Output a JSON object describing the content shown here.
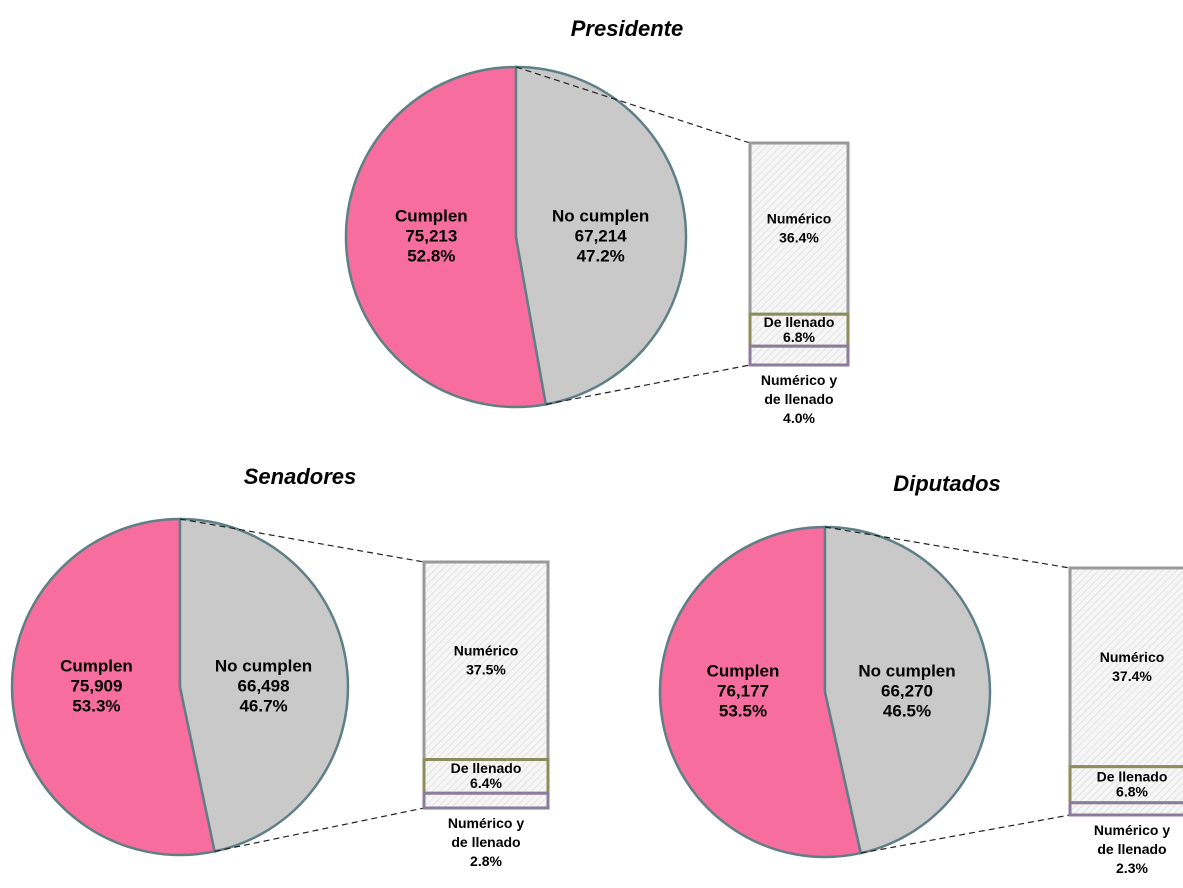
{
  "chart_data": [
    {
      "type": "pie-of-bar",
      "title": "Presidente",
      "categories": [
        "Cumplen",
        "No cumplen"
      ],
      "values": [
        75213,
        67214
      ],
      "value_labels": [
        "75,213",
        "67,214"
      ],
      "percents": [
        52.8,
        47.2
      ],
      "percent_labels": [
        "52.8%",
        "47.2%"
      ],
      "colors": [
        "#f76d9d",
        "#c9c9c9"
      ],
      "bar": {
        "categories": [
          "Numérico",
          "De llenado",
          "Numérico y de llenado"
        ],
        "values": [
          36.4,
          6.8,
          4.0
        ],
        "value_labels": [
          "36.4%",
          "6.8%",
          "4.0%"
        ],
        "color": "#f3f3f3",
        "edge_colors": [
          "#9a9a9a",
          "#8c8c5c",
          "#8c7c9c"
        ]
      }
    },
    {
      "type": "pie-of-bar",
      "title": "Senadores",
      "categories": [
        "Cumplen",
        "No cumplen"
      ],
      "values": [
        75909,
        66498
      ],
      "value_labels": [
        "75,909",
        "66,498"
      ],
      "percents": [
        53.3,
        46.7
      ],
      "percent_labels": [
        "53.3%",
        "46.7%"
      ],
      "colors": [
        "#f76d9d",
        "#c9c9c9"
      ],
      "bar": {
        "categories": [
          "Numérico",
          "De llenado",
          "Numérico y de llenado"
        ],
        "values": [
          37.5,
          6.4,
          2.8
        ],
        "value_labels": [
          "37.5%",
          "6.4%",
          "2.8%"
        ],
        "color": "#f3f3f3",
        "edge_colors": [
          "#9a9a9a",
          "#8c8c5c",
          "#8c7c9c"
        ]
      }
    },
    {
      "type": "pie-of-bar",
      "title": "Diputados",
      "categories": [
        "Cumplen",
        "No cumplen"
      ],
      "values": [
        76177,
        66270
      ],
      "value_labels": [
        "76,177",
        "66,270"
      ],
      "percents": [
        53.5,
        46.5
      ],
      "percent_labels": [
        "53.5%",
        "46.5%"
      ],
      "colors": [
        "#f76d9d",
        "#c9c9c9"
      ],
      "bar": {
        "categories": [
          "Numérico",
          "De llenado",
          "Numérico y de llenado"
        ],
        "values": [
          37.4,
          6.8,
          2.3
        ],
        "value_labels": [
          "37.4%",
          "6.8%",
          "2.3%"
        ],
        "color": "#f3f3f3",
        "edge_colors": [
          "#9a9a9a",
          "#8c8c5c",
          "#8c7c9c"
        ]
      }
    }
  ]
}
